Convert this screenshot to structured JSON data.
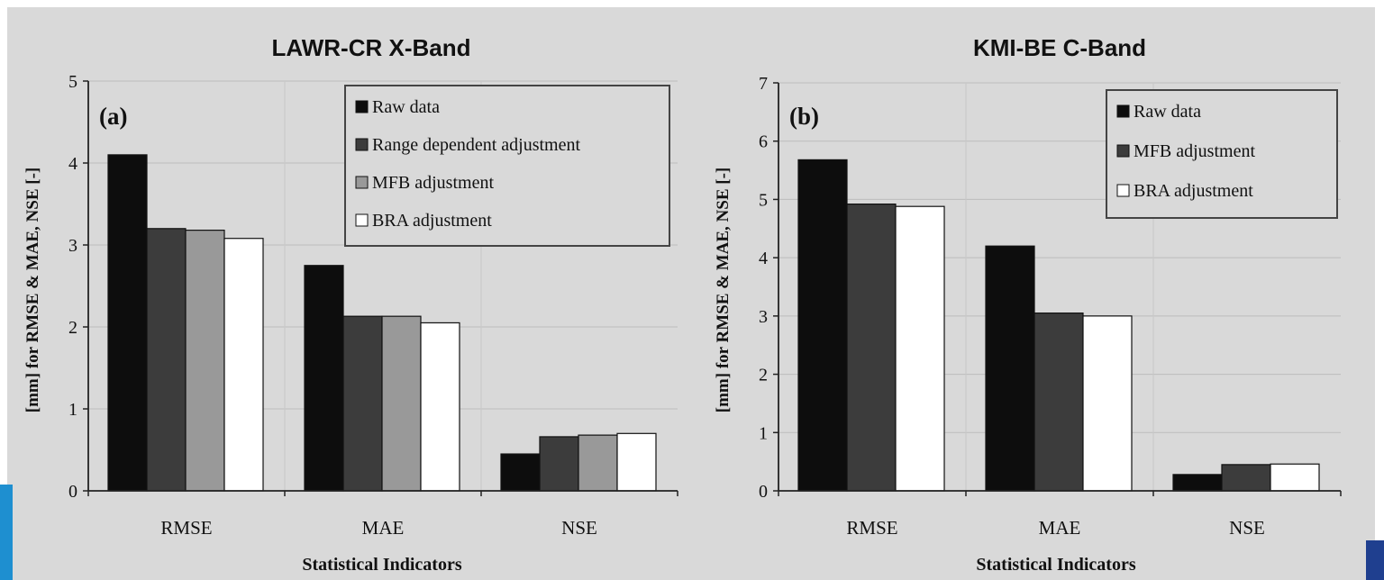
{
  "chart_data": [
    {
      "type": "bar",
      "title": "LAWR-CR X-Band",
      "panel_label": "(a)",
      "xlabel": "Statistical Indicators",
      "ylabel": "[mm] for RMSE & MAE, NSE [-]",
      "ylim": [
        0,
        5
      ],
      "yticks": [
        "0",
        "1",
        "2",
        "3",
        "4",
        "5"
      ],
      "grid": true,
      "legend_position": "top-right",
      "categories": [
        "RMSE",
        "MAE",
        "NSE"
      ],
      "series": [
        {
          "name": "Raw data",
          "color": "#0d0d0d",
          "values": [
            4.1,
            2.75,
            0.45
          ]
        },
        {
          "name": "Range dependent adjustment",
          "color": "#3c3c3c",
          "values": [
            3.2,
            2.13,
            0.66
          ]
        },
        {
          "name": "MFB adjustment",
          "color": "#999999",
          "values": [
            3.18,
            2.13,
            0.68
          ]
        },
        {
          "name": "BRA adjustment",
          "color": "#ffffff",
          "values": [
            3.08,
            2.05,
            0.7
          ]
        }
      ]
    },
    {
      "type": "bar",
      "title": "KMI-BE C-Band",
      "panel_label": "(b)",
      "xlabel": "Statistical Indicators",
      "ylabel": "[mm] for RMSE & MAE, NSE [-]",
      "ylim": [
        0,
        7
      ],
      "yticks": [
        "0",
        "1",
        "2",
        "3",
        "4",
        "5",
        "6",
        "7"
      ],
      "grid": true,
      "legend_position": "top-right",
      "categories": [
        "RMSE",
        "MAE",
        "NSE"
      ],
      "series": [
        {
          "name": "Raw data",
          "color": "#0d0d0d",
          "values": [
            5.68,
            4.2,
            0.28
          ]
        },
        {
          "name": "MFB adjustment",
          "color": "#3c3c3c",
          "values": [
            4.92,
            3.05,
            0.45
          ]
        },
        {
          "name": "BRA adjustment",
          "color": "#ffffff",
          "values": [
            4.88,
            3.0,
            0.46
          ]
        }
      ]
    }
  ],
  "colors": {
    "background": "#d9d9d9",
    "accent_blue": "#1e8fd0",
    "accent_navy": "#1f3f8f"
  }
}
